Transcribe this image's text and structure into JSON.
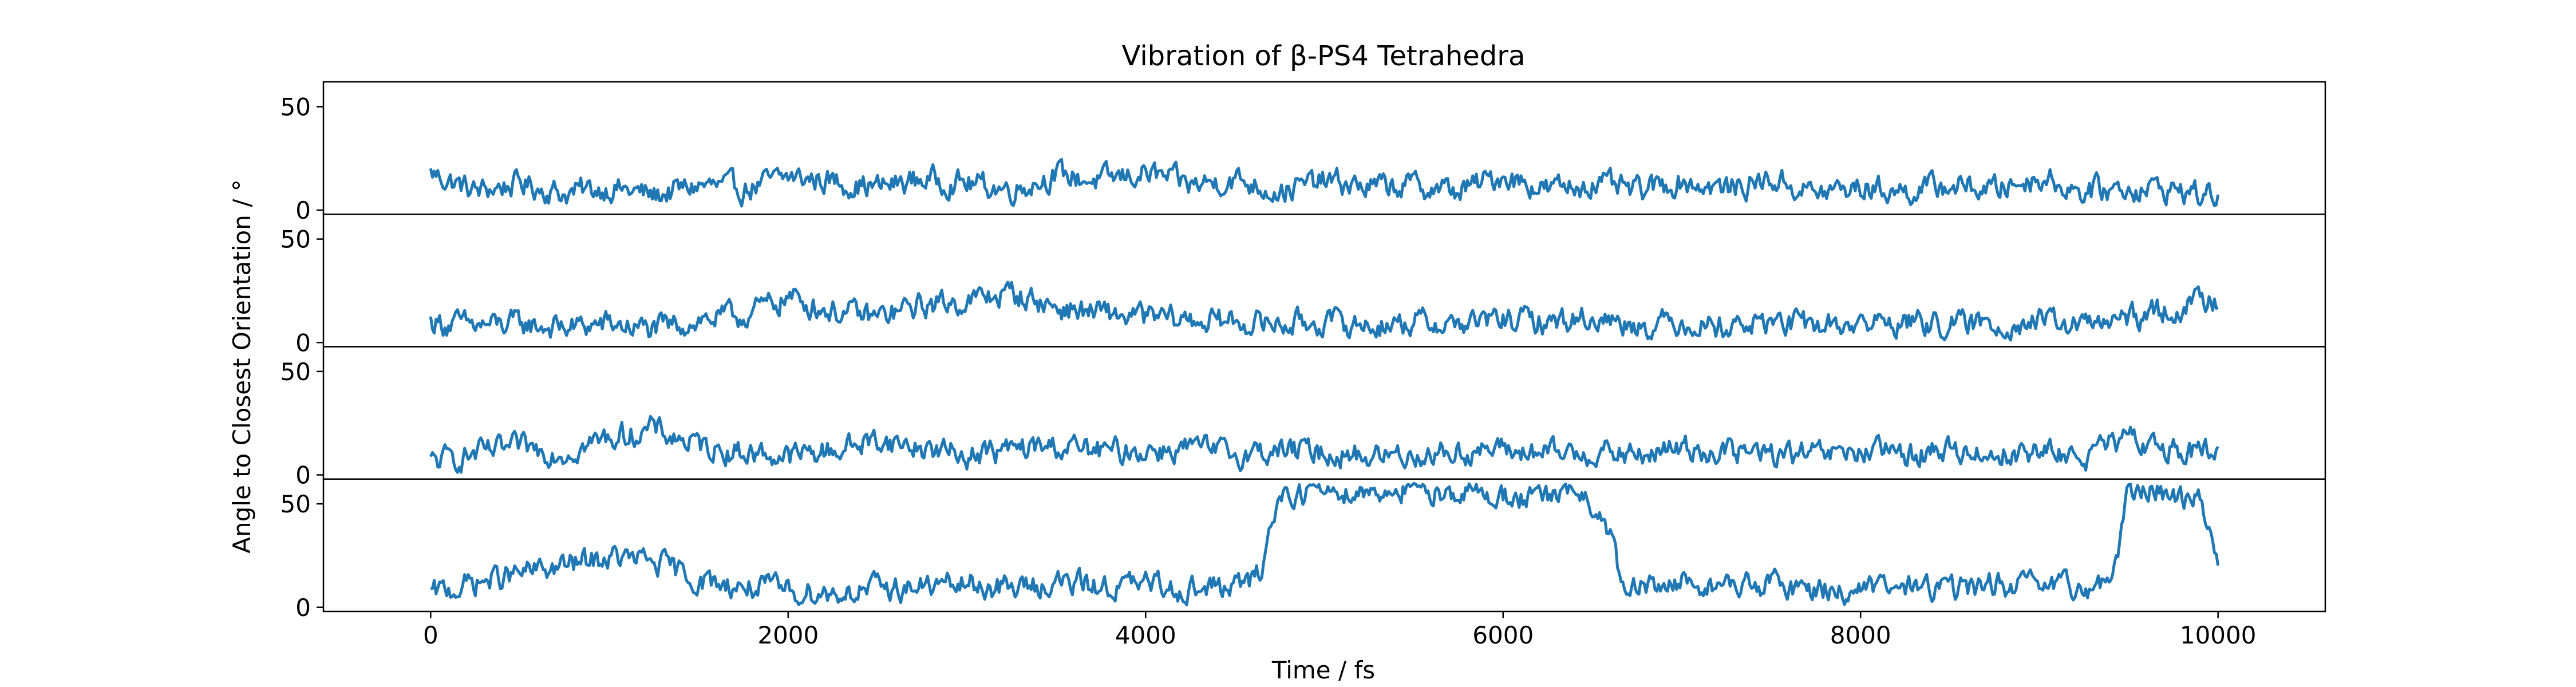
{
  "chart_data": {
    "type": "line",
    "title": "Vibration of β-PS4 Tetrahedra",
    "xlabel": "Time / fs",
    "ylabel": "Angle to Closest Orientation / °",
    "xlim": [
      -600,
      10600
    ],
    "ylim": [
      -2,
      62
    ],
    "x_ticks": [
      0,
      2000,
      4000,
      6000,
      8000,
      10000
    ],
    "y_ticks": [
      0,
      50
    ],
    "grid": false,
    "line_color": "#1f77b4",
    "panels": [
      {
        "name": "",
        "x": [
          0,
          250,
          500,
          750,
          1000,
          1250,
          1500,
          1750,
          2000,
          2250,
          2500,
          2750,
          3000,
          3250,
          3500,
          3750,
          4000,
          4250,
          4500,
          4750,
          5000,
          5250,
          5500,
          5750,
          6000,
          6250,
          6500,
          6750,
          7000,
          7250,
          7500,
          7750,
          8000,
          8250,
          8500,
          8750,
          9000,
          9250,
          9500,
          9750,
          10000
        ],
        "y": [
          18,
          9,
          13,
          8,
          11,
          7,
          12,
          10,
          16,
          14,
          11,
          15,
          13,
          10,
          17,
          14,
          18,
          12,
          15,
          9,
          14,
          11,
          12,
          9,
          17,
          10,
          13,
          9,
          14,
          10,
          15,
          8,
          11,
          9,
          12,
          10,
          16,
          9,
          11,
          10,
          6
        ]
      },
      {
        "name": "",
        "x": [
          0,
          250,
          500,
          750,
          1000,
          1250,
          1500,
          1750,
          2000,
          2250,
          2500,
          2750,
          3000,
          3250,
          3500,
          3750,
          4000,
          4250,
          4500,
          4750,
          5000,
          5250,
          5500,
          5750,
          6000,
          6250,
          6500,
          6750,
          7000,
          7250,
          7500,
          7750,
          8000,
          8250,
          8500,
          8750,
          9000,
          9250,
          9500,
          9750,
          10000
        ],
        "y": [
          10,
          8,
          9,
          7,
          9,
          6,
          11,
          13,
          22,
          15,
          12,
          18,
          20,
          24,
          17,
          14,
          12,
          11,
          10,
          9,
          10,
          8,
          10,
          9,
          11,
          10,
          12,
          9,
          10,
          8,
          10,
          8,
          9,
          10,
          8,
          9,
          10,
          8,
          11,
          16,
          22
        ]
      },
      {
        "name": "",
        "x": [
          0,
          250,
          500,
          750,
          1000,
          1250,
          1500,
          1750,
          2000,
          2250,
          2500,
          2750,
          3000,
          3250,
          3500,
          3750,
          4000,
          4250,
          4500,
          4750,
          5000,
          5250,
          5500,
          5750,
          6000,
          6250,
          6500,
          6750,
          7000,
          7250,
          7500,
          7750,
          8000,
          8250,
          8500,
          8750,
          9000,
          9250,
          9500,
          9750,
          10000
        ],
        "y": [
          6,
          10,
          13,
          11,
          18,
          22,
          14,
          11,
          9,
          12,
          17,
          13,
          10,
          12,
          14,
          11,
          12,
          13,
          10,
          12,
          11,
          9,
          10,
          11,
          12,
          10,
          11,
          9,
          13,
          11,
          10,
          9,
          11,
          10,
          12,
          10,
          11,
          9,
          17,
          13,
          9
        ]
      },
      {
        "name": "",
        "x": [
          0,
          250,
          500,
          750,
          1000,
          1250,
          1500,
          1750,
          2000,
          2250,
          2500,
          2750,
          3000,
          3250,
          3500,
          3750,
          4000,
          4250,
          4500,
          4600,
          4650,
          4700,
          4750,
          5000,
          5250,
          5500,
          5750,
          6000,
          6250,
          6400,
          6500,
          6600,
          6650,
          6700,
          6750,
          7000,
          7250,
          7500,
          7750,
          8000,
          8250,
          8500,
          8750,
          9000,
          9250,
          9400,
          9450,
          9500,
          9600,
          9750,
          9900,
          10000
        ],
        "y": [
          6,
          12,
          16,
          20,
          24,
          22,
          13,
          10,
          8,
          7,
          9,
          10,
          11,
          9,
          12,
          10,
          11,
          9,
          10,
          12,
          20,
          38,
          55,
          57,
          56,
          58,
          55,
          54,
          52,
          57,
          47,
          38,
          12,
          3,
          9,
          12,
          10,
          11,
          9,
          8,
          10,
          9,
          11,
          10,
          9,
          14,
          30,
          56,
          57,
          55,
          52,
          23
        ]
      }
    ]
  }
}
